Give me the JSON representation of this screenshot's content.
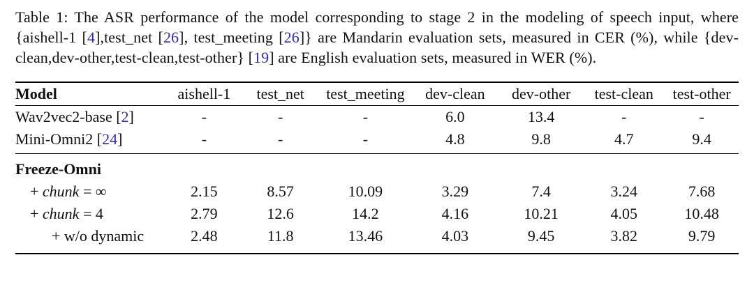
{
  "page": {
    "background": "#ffffff",
    "text_color": "#111111",
    "citation_color": "#2a2ad0"
  },
  "caption": {
    "segments": [
      {
        "t": "Table 1: The ASR performance of the model corresponding to stage 2 in the modeling of speech input, where {aishell-1 ["
      },
      {
        "t": "4",
        "c": "cite"
      },
      {
        "t": "],test_net ["
      },
      {
        "t": "26",
        "c": "cite"
      },
      {
        "t": "], test_meeting ["
      },
      {
        "t": "26",
        "c": "cite"
      },
      {
        "t": "]} are Mandarin evaluation sets, measured in CER (%), while {dev-clean,dev-other,test-clean,test-other} ["
      },
      {
        "t": "19",
        "c": "cite"
      },
      {
        "t": "] are English evaluation sets, measured in WER (%)."
      }
    ]
  },
  "table": {
    "columns": [
      "Model",
      "aishell-1",
      "test_net",
      "test_meeting",
      "dev-clean",
      "dev-other",
      "test-clean",
      "test-other"
    ],
    "rows": [
      {
        "style": "plain",
        "label": [
          {
            "t": "Wav2vec2-base ["
          },
          {
            "t": "2",
            "c": "cite"
          },
          {
            "t": "]"
          }
        ],
        "values": [
          "-",
          "-",
          "-",
          "6.0",
          "13.4",
          "-",
          "-"
        ]
      },
      {
        "style": "plain rule-after",
        "label": [
          {
            "t": "Mini-Omni2 ["
          },
          {
            "t": "24",
            "c": "cite"
          },
          {
            "t": "]"
          }
        ],
        "values": [
          "-",
          "-",
          "-",
          "4.8",
          "9.8",
          "4.7",
          "9.4"
        ]
      },
      {
        "style": "section",
        "label": [
          {
            "t": "Freeze-Omni"
          }
        ],
        "values": [
          "",
          "",
          "",
          "",
          "",
          "",
          ""
        ]
      },
      {
        "style": "indent1",
        "label": [
          {
            "t": "+ "
          },
          {
            "t": "chunk",
            "c": "math"
          },
          {
            "t": " = ∞"
          }
        ],
        "values": [
          "2.15",
          "8.57",
          "10.09",
          "3.29",
          "7.4",
          "3.24",
          "7.68"
        ]
      },
      {
        "style": "indent1",
        "label": [
          {
            "t": "+ "
          },
          {
            "t": "chunk",
            "c": "math"
          },
          {
            "t": " = 4"
          }
        ],
        "values": [
          "2.79",
          "12.6",
          "14.2",
          "4.16",
          "10.21",
          "4.05",
          "10.48"
        ]
      },
      {
        "style": "indent2 last",
        "label": [
          {
            "t": "+ w/o dynamic"
          }
        ],
        "values": [
          "2.48",
          "11.8",
          "13.46",
          "4.03",
          "9.45",
          "3.82",
          "9.79"
        ]
      }
    ]
  }
}
